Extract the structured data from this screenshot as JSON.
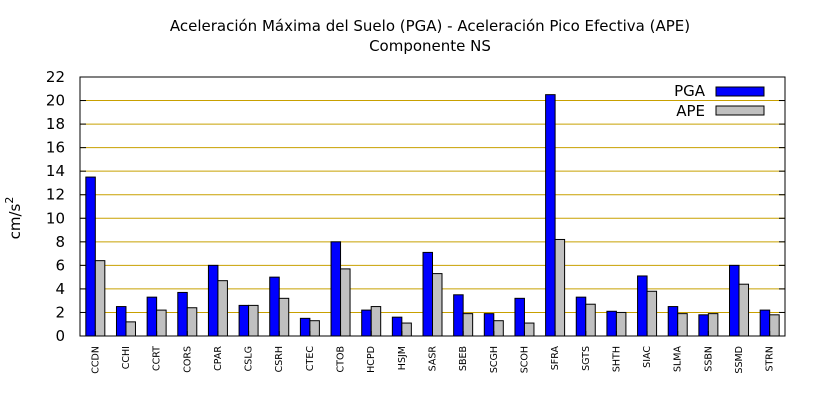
{
  "chart_data": {
    "type": "bar",
    "title": "Aceleración Máxima del Suelo (PGA) -  Aceleración Pico Efectiva (APE)",
    "subtitle": "Componente NS",
    "ylabel": "cm/s",
    "ylabel_superscript": "2",
    "xlabel": "",
    "ylim": [
      0,
      22
    ],
    "yticks": [
      0,
      2,
      4,
      6,
      8,
      10,
      12,
      14,
      16,
      18,
      20,
      22
    ],
    "grid": true,
    "legend_position": "top-right",
    "categories": [
      "CCDN",
      "CCHI",
      "CCRT",
      "CORS",
      "CPAR",
      "CSLG",
      "CSRH",
      "CTEC",
      "CTOB",
      "HCPD",
      "HSJM",
      "SASR",
      "SBEB",
      "SCGH",
      "SCOH",
      "SFRA",
      "SGTS",
      "SHTH",
      "SIAC",
      "SLMA",
      "SSBN",
      "SSMD",
      "STRN"
    ],
    "series": [
      {
        "name": "PGA",
        "color": "#0000ff",
        "values": [
          13.5,
          2.5,
          3.3,
          3.7,
          6.0,
          2.6,
          5.0,
          1.5,
          8.0,
          2.2,
          1.6,
          7.1,
          3.5,
          1.9,
          3.2,
          20.5,
          3.3,
          2.1,
          5.1,
          2.5,
          1.8,
          6.0,
          2.2
        ]
      },
      {
        "name": "APE",
        "color": "#c0c0c0",
        "values": [
          6.4,
          1.2,
          2.2,
          2.4,
          4.7,
          2.6,
          3.2,
          1.3,
          5.7,
          2.5,
          1.1,
          5.3,
          1.9,
          1.3,
          1.1,
          8.2,
          2.7,
          2.0,
          3.8,
          1.9,
          1.9,
          4.4,
          1.8
        ]
      }
    ],
    "colors": {
      "grid": "#c8a000",
      "border": "#000000"
    }
  }
}
